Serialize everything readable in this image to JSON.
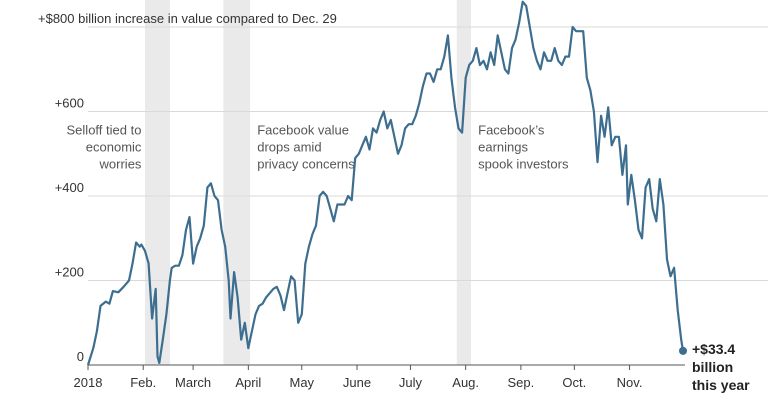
{
  "chart_data": {
    "type": "line",
    "title": "",
    "xlabel": "",
    "ylabel": "",
    "ylim": [
      0,
      800
    ],
    "grid": true,
    "colors": {
      "line": "#3d6e8f",
      "shade": "#eaeaea",
      "grid": "#d9d9d9",
      "axis": "#555555"
    },
    "y_ticks": [
      {
        "value": 0,
        "label": "0"
      },
      {
        "value": 200,
        "label": "+200"
      },
      {
        "value": 400,
        "label": "+400"
      },
      {
        "value": 600,
        "label": "+600"
      },
      {
        "value": 800,
        "label": "+$800 billion increase in value compared to Dec. 29"
      }
    ],
    "x_ticks": [
      {
        "t": 0,
        "label": "2018"
      },
      {
        "t": 31,
        "label": "Feb."
      },
      {
        "t": 59,
        "label": "March"
      },
      {
        "t": 90,
        "label": "April"
      },
      {
        "t": 120,
        "label": "May"
      },
      {
        "t": 151,
        "label": "June"
      },
      {
        "t": 181,
        "label": "July"
      },
      {
        "t": 212,
        "label": "Aug."
      },
      {
        "t": 243,
        "label": "Sep."
      },
      {
        "t": 273,
        "label": "Oct."
      },
      {
        "t": 304,
        "label": "Nov."
      }
    ],
    "x_domain": [
      0,
      334
    ],
    "shaded_periods": [
      {
        "start": 32,
        "end": 46
      },
      {
        "start": 76,
        "end": 91
      },
      {
        "start": 207,
        "end": 215
      }
    ],
    "annotations": [
      {
        "lines": [
          "Selloff tied to",
          "economic",
          "worries"
        ],
        "t": 30,
        "y": 545,
        "align": "end"
      },
      {
        "lines": [
          "Facebook value",
          "drops amid",
          "privacy concerns"
        ],
        "t": 95,
        "y": 545,
        "align": "start"
      },
      {
        "lines": [
          "Facebook’s",
          "earnings",
          "spook investors"
        ],
        "t": 219,
        "y": 545,
        "align": "start"
      }
    ],
    "series": [
      {
        "values": [
          [
            0,
            0
          ],
          [
            3,
            40
          ],
          [
            5,
            80
          ],
          [
            7,
            140
          ],
          [
            10,
            150
          ],
          [
            12,
            145
          ],
          [
            14,
            175
          ],
          [
            17,
            172
          ],
          [
            20,
            185
          ],
          [
            23,
            200
          ],
          [
            25,
            240
          ],
          [
            27,
            290
          ],
          [
            29,
            280
          ],
          [
            30,
            285
          ],
          [
            32,
            270
          ],
          [
            34,
            240
          ],
          [
            36,
            110
          ],
          [
            38,
            180
          ],
          [
            39,
            20
          ],
          [
            40,
            5
          ],
          [
            42,
            60
          ],
          [
            44,
            120
          ],
          [
            46,
            200
          ],
          [
            47,
            230
          ],
          [
            49,
            235
          ],
          [
            51,
            235
          ],
          [
            53,
            260
          ],
          [
            55,
            320
          ],
          [
            57,
            350
          ],
          [
            59,
            240
          ],
          [
            61,
            280
          ],
          [
            63,
            300
          ],
          [
            65,
            330
          ],
          [
            67,
            420
          ],
          [
            69,
            430
          ],
          [
            71,
            400
          ],
          [
            73,
            390
          ],
          [
            75,
            320
          ],
          [
            77,
            280
          ],
          [
            79,
            200
          ],
          [
            80,
            110
          ],
          [
            82,
            220
          ],
          [
            84,
            160
          ],
          [
            86,
            60
          ],
          [
            88,
            100
          ],
          [
            90,
            40
          ],
          [
            92,
            80
          ],
          [
            94,
            120
          ],
          [
            96,
            140
          ],
          [
            98,
            145
          ],
          [
            100,
            160
          ],
          [
            102,
            170
          ],
          [
            104,
            180
          ],
          [
            106,
            185
          ],
          [
            108,
            165
          ],
          [
            110,
            130
          ],
          [
            112,
            170
          ],
          [
            114,
            210
          ],
          [
            116,
            200
          ],
          [
            118,
            100
          ],
          [
            120,
            120
          ],
          [
            122,
            240
          ],
          [
            124,
            280
          ],
          [
            126,
            310
          ],
          [
            128,
            330
          ],
          [
            130,
            400
          ],
          [
            132,
            410
          ],
          [
            134,
            400
          ],
          [
            136,
            370
          ],
          [
            138,
            340
          ],
          [
            140,
            380
          ],
          [
            142,
            380
          ],
          [
            144,
            380
          ],
          [
            146,
            400
          ],
          [
            148,
            390
          ],
          [
            150,
            490
          ],
          [
            152,
            500
          ],
          [
            154,
            520
          ],
          [
            156,
            540
          ],
          [
            158,
            510
          ],
          [
            160,
            560
          ],
          [
            162,
            550
          ],
          [
            164,
            580
          ],
          [
            166,
            600
          ],
          [
            168,
            560
          ],
          [
            170,
            580
          ],
          [
            172,
            540
          ],
          [
            174,
            500
          ],
          [
            176,
            520
          ],
          [
            178,
            560
          ],
          [
            180,
            570
          ],
          [
            182,
            570
          ],
          [
            184,
            590
          ],
          [
            186,
            620
          ],
          [
            188,
            660
          ],
          [
            190,
            690
          ],
          [
            192,
            690
          ],
          [
            194,
            670
          ],
          [
            196,
            700
          ],
          [
            198,
            700
          ],
          [
            200,
            730
          ],
          [
            202,
            780
          ],
          [
            204,
            680
          ],
          [
            206,
            610
          ],
          [
            208,
            560
          ],
          [
            210,
            550
          ],
          [
            212,
            680
          ],
          [
            214,
            710
          ],
          [
            216,
            720
          ],
          [
            218,
            750
          ],
          [
            220,
            710
          ],
          [
            222,
            720
          ],
          [
            224,
            700
          ],
          [
            226,
            740
          ],
          [
            228,
            710
          ],
          [
            230,
            780
          ],
          [
            232,
            740
          ],
          [
            234,
            700
          ],
          [
            236,
            690
          ],
          [
            238,
            750
          ],
          [
            240,
            770
          ],
          [
            242,
            810
          ],
          [
            244,
            860
          ],
          [
            246,
            850
          ],
          [
            248,
            800
          ],
          [
            250,
            750
          ],
          [
            252,
            720
          ],
          [
            254,
            700
          ],
          [
            256,
            740
          ],
          [
            258,
            720
          ],
          [
            260,
            720
          ],
          [
            262,
            750
          ],
          [
            264,
            720
          ],
          [
            266,
            710
          ],
          [
            268,
            730
          ],
          [
            270,
            730
          ],
          [
            272,
            800
          ],
          [
            274,
            790
          ],
          [
            276,
            790
          ],
          [
            278,
            790
          ],
          [
            280,
            680
          ],
          [
            282,
            650
          ],
          [
            284,
            600
          ],
          [
            286,
            480
          ],
          [
            288,
            590
          ],
          [
            290,
            540
          ],
          [
            292,
            610
          ],
          [
            294,
            520
          ],
          [
            296,
            540
          ],
          [
            298,
            540
          ],
          [
            300,
            450
          ],
          [
            302,
            520
          ],
          [
            303,
            380
          ],
          [
            305,
            450
          ],
          [
            307,
            390
          ],
          [
            309,
            320
          ],
          [
            311,
            300
          ],
          [
            313,
            420
          ],
          [
            315,
            440
          ],
          [
            317,
            370
          ],
          [
            319,
            340
          ],
          [
            321,
            440
          ],
          [
            323,
            380
          ],
          [
            325,
            250
          ],
          [
            327,
            210
          ],
          [
            329,
            230
          ],
          [
            331,
            130
          ],
          [
            333,
            60
          ],
          [
            334,
            33.4
          ]
        ]
      }
    ],
    "end_label": {
      "lines": [
        "+$33.4",
        "billion",
        "this year"
      ]
    }
  }
}
